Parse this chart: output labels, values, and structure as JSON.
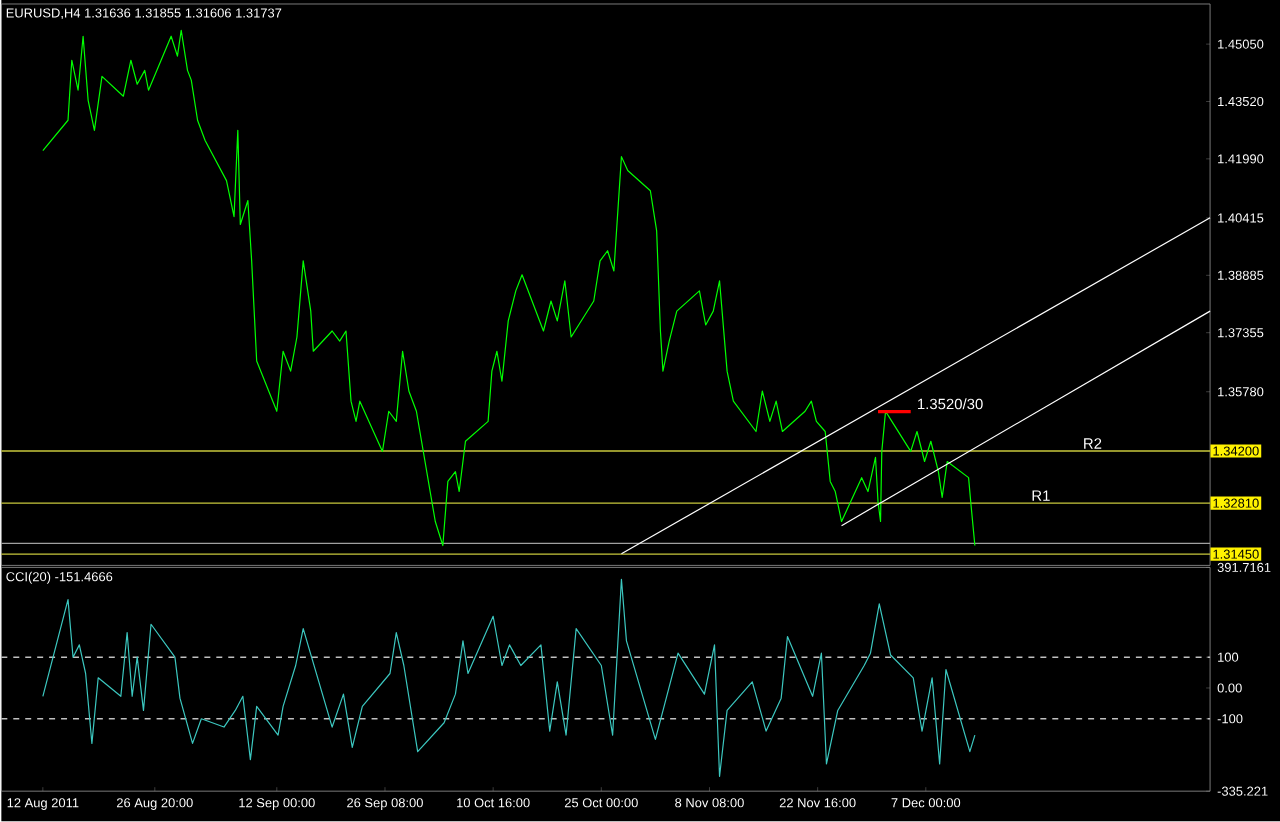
{
  "chart_data": [
    {
      "type": "line",
      "title": "EURUSD,H4 1.31636 1.31855 1.31606 1.31737",
      "xlim": [
        "2011-08-06T12:00",
        "2012-01-13T16:00"
      ],
      "ylim": [
        1.3115,
        1.4612
      ],
      "tick_labels": "y",
      "yticks": [
        {
          "value": 1.4505,
          "label": "1.45050"
        },
        {
          "value": 1.4352,
          "label": "1.43520"
        },
        {
          "value": 1.4199,
          "label": "1.41990"
        },
        {
          "value": 1.40415,
          "label": "1.40415"
        },
        {
          "value": 1.38885,
          "label": "1.38885"
        },
        {
          "value": 1.37355,
          "label": "1.37355"
        },
        {
          "value": 1.3578,
          "label": "1.35780"
        }
      ],
      "series": [
        {
          "color": "#00ff00",
          "x": [
            "2011-08-12T00:00",
            "2011-08-15T08:00",
            "2011-08-15T20:00",
            "2011-08-16T16:00",
            "2011-08-17T08:00",
            "2011-08-18T00:00",
            "2011-08-18T20:00",
            "2011-08-19T20:00",
            "2011-08-22T16:00",
            "2011-08-23T16:00",
            "2011-08-24T12:00",
            "2011-08-25T12:00",
            "2011-08-26T00:00",
            "2011-08-29T00:00",
            "2011-08-29T20:00",
            "2011-08-30T08:00",
            "2011-08-31T04:00",
            "2011-08-31T16:00",
            "2011-09-01T12:00",
            "2011-09-02T12:00",
            "2011-09-05T08:00",
            "2011-09-06T08:00",
            "2011-09-06T20:00",
            "2011-09-07T04:00",
            "2011-09-08T04:00",
            "2011-09-08T16:00",
            "2011-09-09T08:00",
            "2011-09-12T00:00",
            "2011-09-12T20:00",
            "2011-09-13T20:00",
            "2011-09-14T16:00",
            "2011-09-15T12:00",
            "2011-09-16T12:00",
            "2011-09-16T20:00",
            "2011-09-19T08:00",
            "2011-09-20T08:00",
            "2011-09-21T04:00",
            "2011-09-21T20:00",
            "2011-09-22T12:00",
            "2011-09-23T00:00",
            "2011-09-26T00:00",
            "2011-09-26T20:00",
            "2011-09-27T20:00",
            "2011-09-28T16:00",
            "2011-09-29T12:00",
            "2011-09-30T12:00",
            "2011-10-03T00:00",
            "2011-10-04T00:00",
            "2011-10-04T16:00",
            "2011-10-05T16:00",
            "2011-10-06T04:00",
            "2011-10-07T00:00",
            "2011-10-10T00:00",
            "2011-10-10T12:00",
            "2011-10-11T04:00",
            "2011-10-11T20:00",
            "2011-10-12T16:00",
            "2011-10-13T16:00",
            "2011-10-14T12:00",
            "2011-10-17T08:00",
            "2011-10-18T08:00",
            "2011-10-19T04:00",
            "2011-10-20T04:00",
            "2011-10-21T00:00",
            "2011-10-24T00:00",
            "2011-10-24T20:00",
            "2011-10-25T20:00",
            "2011-10-26T16:00",
            "2011-10-27T16:00",
            "2011-10-28T12:00",
            "2011-10-31T12:00",
            "2011-11-01T08:00",
            "2011-11-01T20:00",
            "2011-11-02T04:00",
            "2011-11-03T00:00",
            "2011-11-04T00:00",
            "2011-11-07T00:00",
            "2011-11-07T20:00",
            "2011-11-08T20:00",
            "2011-11-09T16:00",
            "2011-11-10T16:00",
            "2011-11-11T12:00",
            "2011-11-14T12:00",
            "2011-11-15T08:00",
            "2011-11-16T08:00",
            "2011-11-17T04:00",
            "2011-11-18T00:00",
            "2011-11-21T00:00",
            "2011-11-21T20:00",
            "2011-11-22T12:00",
            "2011-11-23T16:00",
            "2011-11-24T08:00",
            "2011-11-25T00:00",
            "2011-11-25T20:00",
            "2011-11-28T12:00",
            "2011-11-29T08:00",
            "2011-11-30T08:00",
            "2011-11-30T16:00",
            "2011-12-01T00:00",
            "2011-12-01T04:00",
            "2011-12-01T16:00",
            "2011-12-02T12:00",
            "2011-12-05T00:00",
            "2011-12-05T20:00",
            "2011-12-06T20:00",
            "2011-12-07T16:00",
            "2011-12-08T16:00",
            "2011-12-09T04:00",
            "2011-12-09T20:00",
            "2011-12-12T16:00",
            "2011-12-13T00:00",
            "2011-12-13T12:00"
          ],
          "values": [
            1.4221,
            1.4302,
            1.4462,
            1.4382,
            1.4526,
            1.4355,
            1.4275,
            1.4419,
            1.4366,
            1.4462,
            1.4398,
            1.4435,
            1.4382,
            1.4526,
            1.4473,
            1.4542,
            1.4435,
            1.4409,
            1.4302,
            1.4248,
            1.4141,
            1.4045,
            1.4275,
            1.4024,
            1.4088,
            1.3927,
            1.366,
            1.3526,
            1.3686,
            1.3633,
            1.3724,
            1.3927,
            1.3793,
            1.3686,
            1.374,
            1.3713,
            1.374,
            1.3553,
            1.3499,
            1.3553,
            1.3419,
            1.3526,
            1.3499,
            1.3686,
            1.358,
            1.3526,
            1.3232,
            1.3168,
            1.3339,
            1.3365,
            1.3312,
            1.3446,
            1.3499,
            1.3633,
            1.3686,
            1.3606,
            1.3767,
            1.3847,
            1.389,
            1.374,
            1.382,
            1.3767,
            1.3874,
            1.3724,
            1.382,
            1.3927,
            1.3954,
            1.39,
            1.4205,
            1.4168,
            1.4114,
            1.4007,
            1.374,
            1.3633,
            1.3713,
            1.3793,
            1.3847,
            1.3756,
            1.3793,
            1.3874,
            1.3633,
            1.3553,
            1.3472,
            1.358,
            1.3499,
            1.3553,
            1.3472,
            1.3526,
            1.3553,
            1.3499,
            1.3472,
            1.3339,
            1.3312,
            1.3232,
            1.3349,
            1.3312,
            1.3403,
            1.3285,
            1.3232,
            1.3419,
            1.3526,
            1.3499,
            1.3419,
            1.3472,
            1.3392,
            1.3446,
            1.3365,
            1.3296,
            1.3392,
            1.3349,
            1.3274,
            1.3168
          ]
        },
        {
          "color": "#ffffff",
          "x": [
            "2011-10-27T16:00",
            "2012-01-13T16:00"
          ],
          "values": [
            1.3146,
            1.4042
          ]
        },
        {
          "color": "#ffffff",
          "x": [
            "2011-11-25T20:00",
            "2012-01-13T16:00"
          ],
          "values": [
            1.3221,
            1.3793
          ]
        },
        {
          "color": "#ff0000",
          "x": [
            "2011-11-30T16:00",
            "2011-12-05T00:00"
          ],
          "values": [
            1.3525,
            1.3525
          ]
        }
      ],
      "ref_lines": [
        {
          "axis": "y",
          "value": 1.342,
          "label": "1.34200",
          "color": "#c8c83c"
        },
        {
          "axis": "y",
          "value": 1.3281,
          "label": "1.32810",
          "color": "#c8c83c"
        },
        {
          "axis": "y",
          "value": 1.31737,
          "color": "#a0a0a0"
        },
        {
          "axis": "y",
          "value": 1.3145,
          "label": "1.31450",
          "color": "#c8c83c"
        }
      ],
      "annotations": [
        {
          "text": "1.3520/30",
          "x": "2011-12-05T12:00",
          "y": 1.3525
        },
        {
          "text": "R2",
          "x": "2011-12-27T12:00",
          "y": 1.342
        },
        {
          "text": "R1",
          "x": "2011-12-20T16:00",
          "y": 1.3281
        }
      ]
    },
    {
      "type": "line",
      "title": "CCI(20) -151.4666",
      "xlim": [
        "2011-08-06T12:00",
        "2012-01-13T16:00"
      ],
      "ylim": [
        -335.221,
        391.7161
      ],
      "xticks": [
        {
          "value": "2011-08-12T00:00",
          "label": "12 Aug 2011"
        },
        {
          "value": "2011-08-26T20:00",
          "label": "26 Aug 20:00"
        },
        {
          "value": "2011-09-12T00:00",
          "label": "12 Sep 00:00"
        },
        {
          "value": "2011-09-26T08:00",
          "label": "26 Sep 08:00"
        },
        {
          "value": "2011-10-10T16:00",
          "label": "10 Oct 16:00"
        },
        {
          "value": "2011-10-25T00:00",
          "label": "25 Oct 00:00"
        },
        {
          "value": "2011-11-08T08:00",
          "label": "8 Nov 08:00"
        },
        {
          "value": "2011-11-22T16:00",
          "label": "22 Nov 16:00"
        },
        {
          "value": "2011-12-07T00:00",
          "label": "7 Dec 00:00"
        }
      ],
      "yticks": [
        391.7161,
        100,
        {
          "value": 0,
          "label": "0.00"
        },
        -100,
        -335.221
      ],
      "series": [
        {
          "color": "#3cc8c0",
          "x": [
            "2011-08-12T00:00",
            "2011-08-15T08:00",
            "2011-08-16T00:00",
            "2011-08-16T20:00",
            "2011-08-17T16:00",
            "2011-08-18T12:00",
            "2011-08-19T08:00",
            "2011-08-22T08:00",
            "2011-08-23T04:00",
            "2011-08-23T20:00",
            "2011-08-24T12:00",
            "2011-08-25T08:00",
            "2011-08-26T08:00",
            "2011-08-29T12:00",
            "2011-08-30T04:00",
            "2011-08-31T20:00",
            "2011-09-02T00:00",
            "2011-09-05T00:00",
            "2011-09-06T12:00",
            "2011-09-07T12:00",
            "2011-09-08T12:00",
            "2011-09-09T08:00",
            "2011-09-12T04:00",
            "2011-09-12T20:00",
            "2011-09-14T12:00",
            "2011-09-15T12:00",
            "2011-09-19T08:00",
            "2011-09-20T20:00",
            "2011-09-22T00:00",
            "2011-09-23T08:00",
            "2011-09-27T00:00",
            "2011-09-27T20:00",
            "2011-09-28T20:00",
            "2011-09-30T16:00",
            "2011-10-04T04:00",
            "2011-10-05T16:00",
            "2011-10-06T16:00",
            "2011-10-07T08:00",
            "2011-10-10T16:00",
            "2011-10-11T20:00",
            "2011-10-12T20:00",
            "2011-10-14T08:00",
            "2011-10-17T00:00",
            "2011-10-18T04:00",
            "2011-10-19T04:00",
            "2011-10-20T08:00",
            "2011-10-21T16:00",
            "2011-10-25T00:00",
            "2011-10-26T12:00",
            "2011-10-27T16:00",
            "2011-10-28T08:00",
            "2011-11-01T04:00",
            "2011-11-02T16:00",
            "2011-11-04T04:00",
            "2011-11-07T16:00",
            "2011-11-09T00:00",
            "2011-11-09T16:00",
            "2011-11-10T16:00",
            "2011-11-14T00:00",
            "2011-11-15T20:00",
            "2011-11-17T20:00",
            "2011-11-18T16:00",
            "2011-11-22T00:00",
            "2011-11-23T04:00",
            "2011-11-23T20:00",
            "2011-11-25T08:00",
            "2011-11-28T20:00",
            "2011-11-29T16:00",
            "2011-11-30T20:00",
            "2011-12-02T08:00",
            "2011-12-05T08:00",
            "2011-12-06T12:00",
            "2011-12-07T20:00",
            "2011-12-08T20:00",
            "2011-12-09T16:00",
            "2011-12-12T20:00",
            "2011-12-13T12:00"
          ],
          "values": [
            -27,
            287,
            100,
            140,
            47,
            -180,
            33,
            -27,
            180,
            -27,
            100,
            -73,
            207,
            100,
            -33,
            -180,
            -100,
            -127,
            -73,
            -27,
            -233,
            -60,
            -153,
            -60,
            73,
            193,
            -127,
            -20,
            -193,
            -60,
            47,
            180,
            73,
            -207,
            -113,
            -20,
            153,
            47,
            233,
            73,
            140,
            73,
            140,
            -140,
            20,
            -153,
            193,
            73,
            -153,
            353,
            153,
            -167,
            -27,
            113,
            -20,
            140,
            -287,
            -73,
            20,
            -140,
            -33,
            167,
            -27,
            113,
            -247,
            -73,
            73,
            113,
            273,
            107,
            33,
            -140,
            33,
            -247,
            60,
            -207,
            -153
          ]
        }
      ],
      "ref_lines": [
        {
          "axis": "y",
          "value": 100,
          "color": "#c0c0c0",
          "line_style": "dashed"
        },
        {
          "axis": "y",
          "value": -100,
          "color": "#c0c0c0",
          "line_style": "dashed"
        }
      ]
    }
  ]
}
